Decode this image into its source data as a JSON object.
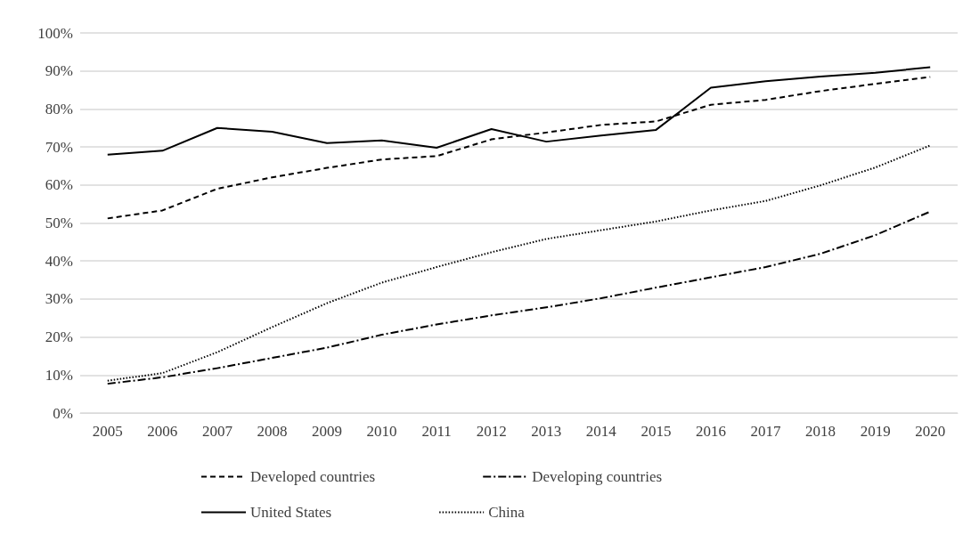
{
  "chart_data": {
    "type": "line",
    "categories": [
      "2005",
      "2006",
      "2007",
      "2008",
      "2009",
      "2010",
      "2011",
      "2012",
      "2013",
      "2014",
      "2015",
      "2016",
      "2017",
      "2018",
      "2019",
      "2020"
    ],
    "series": [
      {
        "name": "Developed countries",
        "color": "#000000",
        "line_style": "dashed",
        "values": [
          51.2,
          53.3,
          59,
          62,
          64.5,
          66.7,
          67.6,
          72,
          73.8,
          75.8,
          76.7,
          81.1,
          82.4,
          84.7,
          86.6,
          88.4
        ]
      },
      {
        "name": "Developing countries",
        "color": "#000000",
        "line_style": "dashdot",
        "values": [
          7.7,
          9.4,
          11.8,
          14.5,
          17.2,
          20.6,
          23.3,
          25.7,
          27.8,
          30.2,
          33,
          35.7,
          38.4,
          41.9,
          46.8,
          53
        ]
      },
      {
        "name": "United States",
        "color": "#000000",
        "line_style": "solid",
        "values": [
          68,
          69,
          75,
          74,
          71,
          71.7,
          69.8,
          74.7,
          71.4,
          73,
          74.5,
          85.6,
          87.3,
          88.5,
          89.5,
          91
        ]
      },
      {
        "name": "China",
        "color": "#000000",
        "line_style": "dotted",
        "values": [
          8.5,
          10.5,
          16,
          22.6,
          28.9,
          34.3,
          38.4,
          42.3,
          45.8,
          48.1,
          50.4,
          53.3,
          55.8,
          59.9,
          64.6,
          70.4
        ]
      }
    ],
    "ylim": [
      0,
      100
    ],
    "yticks": [
      {
        "value": 0,
        "label": "0%"
      },
      {
        "value": 10,
        "label": "10%"
      },
      {
        "value": 20,
        "label": "20%"
      },
      {
        "value": 30,
        "label": "30%"
      },
      {
        "value": 40,
        "label": "40%"
      },
      {
        "value": 50,
        "label": "50%"
      },
      {
        "value": 60,
        "label": "60%"
      },
      {
        "value": 70,
        "label": "70%"
      },
      {
        "value": 80,
        "label": "80%"
      },
      {
        "value": 90,
        "label": "90%"
      },
      {
        "value": 100,
        "label": "100%"
      }
    ],
    "grid": "y",
    "legend": "bottom",
    "marker": "none"
  }
}
